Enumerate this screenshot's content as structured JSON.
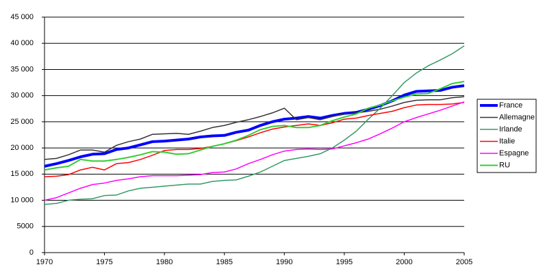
{
  "chart_data": {
    "type": "line",
    "x": [
      1970,
      1971,
      1972,
      1973,
      1974,
      1975,
      1976,
      1977,
      1978,
      1979,
      1980,
      1981,
      1982,
      1983,
      1984,
      1985,
      1986,
      1987,
      1988,
      1989,
      1990,
      1991,
      1992,
      1993,
      1994,
      1995,
      1996,
      1997,
      1998,
      1999,
      2000,
      2001,
      2002,
      2003,
      2004,
      2005
    ],
    "series": [
      {
        "name": "France",
        "color": "#0000ff",
        "width": 4,
        "values": [
          16500,
          17000,
          17600,
          18300,
          18800,
          18900,
          19700,
          20000,
          20600,
          21200,
          21300,
          21500,
          21700,
          22100,
          22300,
          22400,
          23000,
          23400,
          24300,
          25000,
          25500,
          25700,
          26000,
          25700,
          26200,
          26600,
          26800,
          27400,
          28100,
          29000,
          30100,
          30800,
          30900,
          31000,
          31600,
          31900
        ]
      },
      {
        "name": "Allemagne",
        "color": "#333333",
        "width": 1.5,
        "values": [
          17800,
          18000,
          18700,
          19600,
          19600,
          19200,
          20500,
          21200,
          21700,
          22600,
          22700,
          22800,
          22600,
          23200,
          23900,
          24300,
          24900,
          25400,
          26000,
          26700,
          27600,
          25400,
          25800,
          25400,
          26000,
          26500,
          26700,
          27000,
          27400,
          28000,
          28700,
          29100,
          29200,
          29200,
          29600,
          29800
        ]
      },
      {
        "name": "Irlande",
        "color": "#339966",
        "width": 1.5,
        "values": [
          9200,
          9400,
          10000,
          10200,
          10300,
          10900,
          11000,
          11800,
          12300,
          12500,
          12700,
          12900,
          13100,
          13100,
          13600,
          13800,
          13900,
          14600,
          15400,
          16500,
          17600,
          18000,
          18400,
          18900,
          20000,
          21500,
          23200,
          25500,
          27600,
          30000,
          32500,
          34300,
          35700,
          36800,
          38000,
          39500
        ]
      },
      {
        "name": "Italie",
        "color": "#ff0000",
        "width": 1.5,
        "values": [
          14500,
          14600,
          14900,
          15800,
          16300,
          15800,
          17000,
          17200,
          17800,
          18600,
          19500,
          19700,
          19700,
          19900,
          20300,
          20800,
          21400,
          22100,
          22900,
          23600,
          24000,
          24300,
          24600,
          24300,
          24800,
          25500,
          25700,
          26200,
          26600,
          27000,
          27700,
          28200,
          28300,
          28300,
          28400,
          28700
        ]
      },
      {
        "name": "Espagne",
        "color": "#ff00ff",
        "width": 1.5,
        "values": [
          10000,
          10500,
          11400,
          12300,
          13000,
          13300,
          13800,
          14100,
          14500,
          14700,
          14700,
          14700,
          14800,
          14900,
          15300,
          15400,
          16000,
          17000,
          17800,
          18700,
          19400,
          19700,
          19800,
          19700,
          19800,
          20400,
          21000,
          21700,
          22700,
          23800,
          25000,
          25800,
          26500,
          27200,
          28000,
          28800
        ]
      },
      {
        "name": "RU",
        "color": "#33cc33",
        "width": 2,
        "values": [
          15800,
          16200,
          16500,
          17800,
          17500,
          17500,
          17800,
          18200,
          18700,
          19300,
          19200,
          18800,
          18900,
          19600,
          20300,
          20800,
          21500,
          22400,
          23500,
          24100,
          24300,
          23900,
          23900,
          24300,
          25200,
          25900,
          26500,
          27600,
          28200,
          29000,
          29700,
          30300,
          30400,
          31300,
          32300,
          32700
        ]
      }
    ],
    "xlim": [
      1970,
      2005
    ],
    "xticks": [
      1970,
      1975,
      1980,
      1985,
      1990,
      1995,
      2000,
      2005
    ],
    "ylim": [
      0,
      45000
    ],
    "yticks": [
      0,
      5000,
      {
        "value": 10000,
        "label": "10 000"
      },
      {
        "value": 15000,
        "label": "15 000"
      },
      {
        "value": 20000,
        "label": "20 000"
      },
      {
        "value": 25000,
        "label": "25 000"
      },
      {
        "value": 30000,
        "label": "30 000"
      },
      {
        "value": 35000,
        "label": "35 000"
      },
      {
        "value": 40000,
        "label": "40 000"
      },
      {
        "value": 45000,
        "label": "45 000"
      }
    ],
    "grid": true,
    "legend": "right"
  }
}
